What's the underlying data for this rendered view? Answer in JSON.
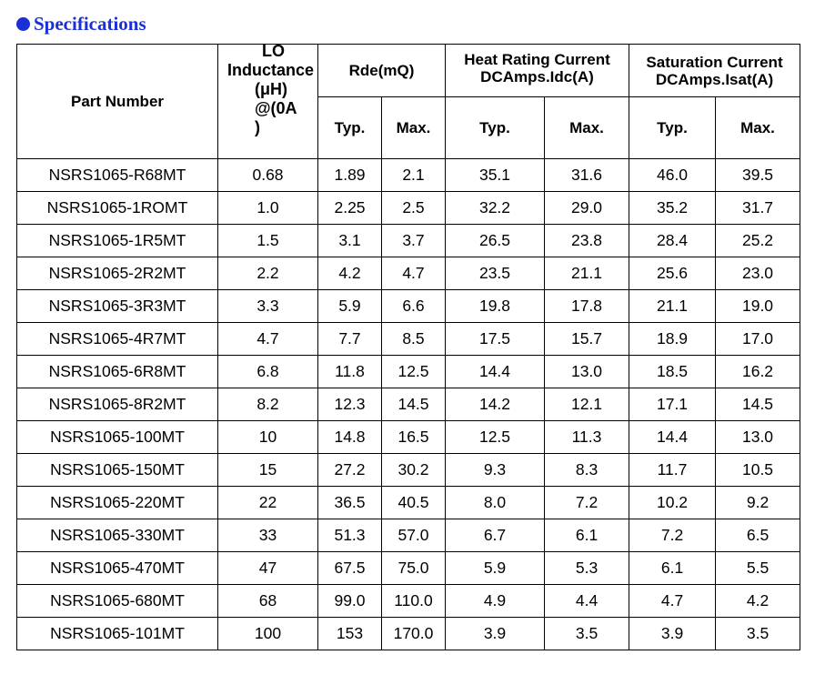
{
  "section": {
    "title": "Specifications"
  },
  "table": {
    "headers": {
      "part_number": "Part Number",
      "inductance_lines": [
        "LO",
        "Inductance",
        "(μH)",
        "@(0A",
        ")"
      ],
      "rdc_group": "Rde(mQ)",
      "heat_group_line1": "Heat Rating Current",
      "heat_group_line2": "DCAmps.Idc(A)",
      "sat_group_line1": "Saturation  Current",
      "sat_group_line2": "DCAmps.Isat(A)",
      "typ": "Typ.",
      "max": "Max."
    },
    "rows": [
      [
        "NSRS1065-R68MT",
        "0.68",
        "1.89",
        "2.1",
        "35.1",
        "31.6",
        "46.0",
        "39.5"
      ],
      [
        "NSRS1065-1ROMT",
        "1.0",
        "2.25",
        "2.5",
        "32.2",
        "29.0",
        "35.2",
        "31.7"
      ],
      [
        "NSRS1065-1R5MT",
        "1.5",
        "3.1",
        "3.7",
        "26.5",
        "23.8",
        "28.4",
        "25.2"
      ],
      [
        "NSRS1065-2R2MT",
        "2.2",
        "4.2",
        "4.7",
        "23.5",
        "21.1",
        "25.6",
        "23.0"
      ],
      [
        "NSRS1065-3R3MT",
        "3.3",
        "5.9",
        "6.6",
        "19.8",
        "17.8",
        "21.1",
        "19.0"
      ],
      [
        "NSRS1065-4R7MT",
        "4.7",
        "7.7",
        "8.5",
        "17.5",
        "15.7",
        "18.9",
        "17.0"
      ],
      [
        "NSRS1065-6R8MT",
        "6.8",
        "11.8",
        "12.5",
        "14.4",
        "13.0",
        "18.5",
        "16.2"
      ],
      [
        "NSRS1065-8R2MT",
        "8.2",
        "12.3",
        "14.5",
        "14.2",
        "12.1",
        "17.1",
        "14.5"
      ],
      [
        "NSRS1065-100MT",
        "10",
        "14.8",
        "16.5",
        "12.5",
        "11.3",
        "14.4",
        "13.0"
      ],
      [
        "NSRS1065-150MT",
        "15",
        "27.2",
        "30.2",
        "9.3",
        "8.3",
        "11.7",
        "10.5"
      ],
      [
        "NSRS1065-220MT",
        "22",
        "36.5",
        "40.5",
        "8.0",
        "7.2",
        "10.2",
        "9.2"
      ],
      [
        "NSRS1065-330MT",
        "33",
        "51.3",
        "57.0",
        "6.7",
        "6.1",
        "7.2",
        "6.5"
      ],
      [
        "NSRS1065-470MT",
        "47",
        "67.5",
        "75.0",
        "5.9",
        "5.3",
        "6.1",
        "5.5"
      ],
      [
        "NSRS1065-680MT",
        "68",
        "99.0",
        "110.0",
        "4.9",
        "4.4",
        "4.7",
        "4.2"
      ],
      [
        "NSRS1065-101MT",
        "100",
        "153",
        "170.0",
        "3.9",
        "3.5",
        "3.9",
        "3.5"
      ]
    ]
  },
  "colors": {
    "title": "#1a2fd6",
    "border": "#000000",
    "text": "#000000"
  }
}
